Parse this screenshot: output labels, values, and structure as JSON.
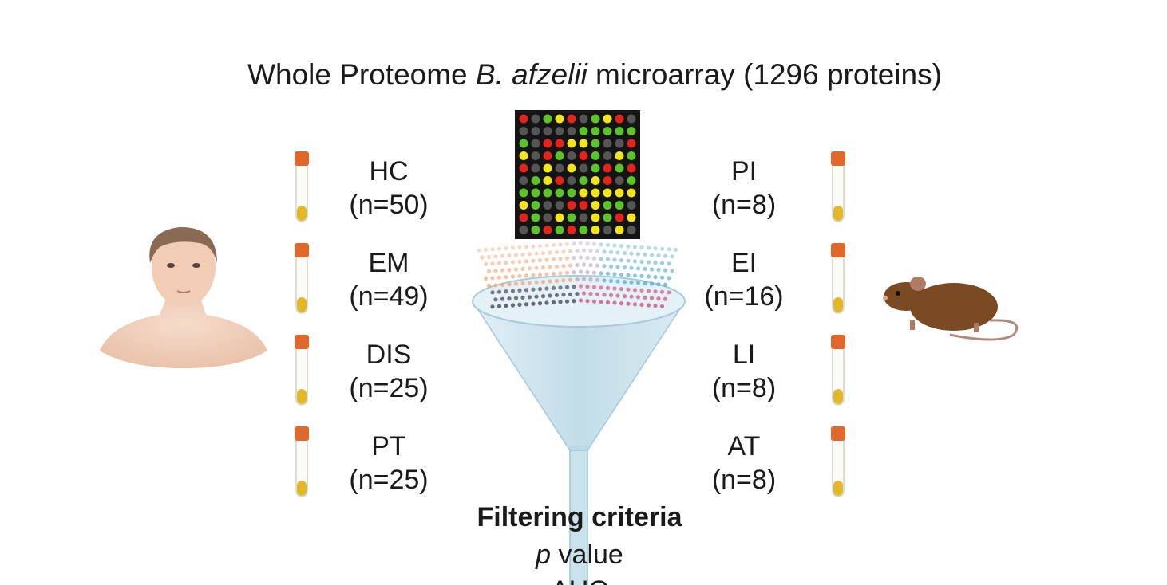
{
  "title": {
    "parts": [
      "Whole Proteome ",
      "B. afzelii",
      " microarray (1296 proteins)"
    ]
  },
  "human_groups": [
    {
      "label": "HC",
      "n": "(n=50)"
    },
    {
      "label": "EM",
      "n": "(n=49)"
    },
    {
      "label": "DIS",
      "n": "(n=25)"
    },
    {
      "label": "PT",
      "n": "(n=25)"
    }
  ],
  "mouse_groups": [
    {
      "label": "PI",
      "n": "(n=8)"
    },
    {
      "label": "EI",
      "n": "(n=16)"
    },
    {
      "label": "LI",
      "n": "(n=8)"
    },
    {
      "label": "AT",
      "n": "(n=8)"
    }
  ],
  "filtering": {
    "heading": "Filtering criteria",
    "criteria": [
      {
        "parts": [
          "p",
          " value"
        ]
      },
      {
        "parts": [
          "AUC"
        ]
      }
    ]
  }
}
